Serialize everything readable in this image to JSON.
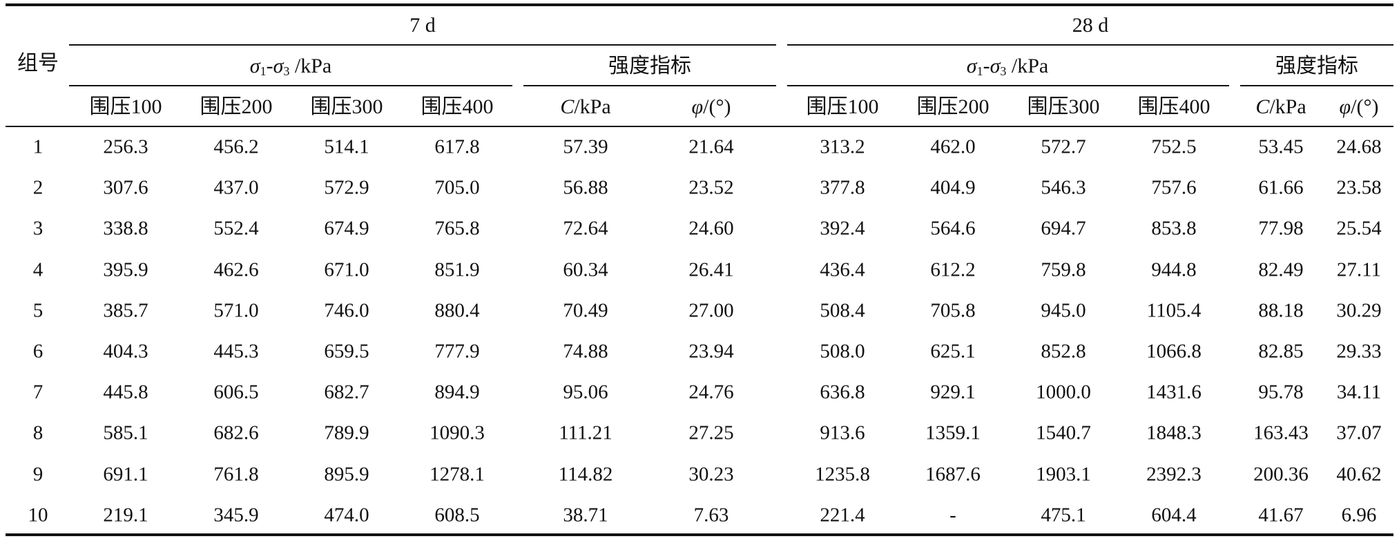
{
  "header": {
    "group_label": "组号",
    "period_a": "7 d",
    "period_b": "28 d",
    "stress_label": {
      "sigma": "σ",
      "sub1": "1",
      "dash": "-",
      "sub3": "3",
      "unit": " /kPa"
    },
    "strength_label": "强度指标",
    "confining": [
      "围压100",
      "围压200",
      "围压300",
      "围压400"
    ],
    "c_label": {
      "sym": "C",
      "unit": "/kPa"
    },
    "phi_label": {
      "sym": "φ",
      "unit": "/(°)"
    }
  },
  "rows": [
    {
      "id": "1",
      "d7": [
        "256.3",
        "456.2",
        "514.1",
        "617.8",
        "57.39",
        "21.64"
      ],
      "d28": [
        "313.2",
        "462.0",
        "572.7",
        "752.5",
        "53.45",
        "24.68"
      ]
    },
    {
      "id": "2",
      "d7": [
        "307.6",
        "437.0",
        "572.9",
        "705.0",
        "56.88",
        "23.52"
      ],
      "d28": [
        "377.8",
        "404.9",
        "546.3",
        "757.6",
        "61.66",
        "23.58"
      ]
    },
    {
      "id": "3",
      "d7": [
        "338.8",
        "552.4",
        "674.9",
        "765.8",
        "72.64",
        "24.60"
      ],
      "d28": [
        "392.4",
        "564.6",
        "694.7",
        "853.8",
        "77.98",
        "25.54"
      ]
    },
    {
      "id": "4",
      "d7": [
        "395.9",
        "462.6",
        "671.0",
        "851.9",
        "60.34",
        "26.41"
      ],
      "d28": [
        "436.4",
        "612.2",
        "759.8",
        "944.8",
        "82.49",
        "27.11"
      ]
    },
    {
      "id": "5",
      "d7": [
        "385.7",
        "571.0",
        "746.0",
        "880.4",
        "70.49",
        "27.00"
      ],
      "d28": [
        "508.4",
        "705.8",
        "945.0",
        "1105.4",
        "88.18",
        "30.29"
      ]
    },
    {
      "id": "6",
      "d7": [
        "404.3",
        "445.3",
        "659.5",
        "777.9",
        "74.88",
        "23.94"
      ],
      "d28": [
        "508.0",
        "625.1",
        "852.8",
        "1066.8",
        "82.85",
        "29.33"
      ]
    },
    {
      "id": "7",
      "d7": [
        "445.8",
        "606.5",
        "682.7",
        "894.9",
        "95.06",
        "24.76"
      ],
      "d28": [
        "636.8",
        "929.1",
        "1000.0",
        "1431.6",
        "95.78",
        "34.11"
      ]
    },
    {
      "id": "8",
      "d7": [
        "585.1",
        "682.6",
        "789.9",
        "1090.3",
        "111.21",
        "27.25"
      ],
      "d28": [
        "913.6",
        "1359.1",
        "1540.7",
        "1848.3",
        "163.43",
        "37.07"
      ]
    },
    {
      "id": "9",
      "d7": [
        "691.1",
        "761.8",
        "895.9",
        "1278.1",
        "114.82",
        "30.23"
      ],
      "d28": [
        "1235.8",
        "1687.6",
        "1903.1",
        "2392.3",
        "200.36",
        "40.62"
      ]
    },
    {
      "id": "10",
      "d7": [
        "219.1",
        "345.9",
        "474.0",
        "608.5",
        "38.71",
        "7.63"
      ],
      "d28": [
        "221.4",
        "-",
        "475.1",
        "604.4",
        "41.67",
        "6.96"
      ]
    }
  ]
}
